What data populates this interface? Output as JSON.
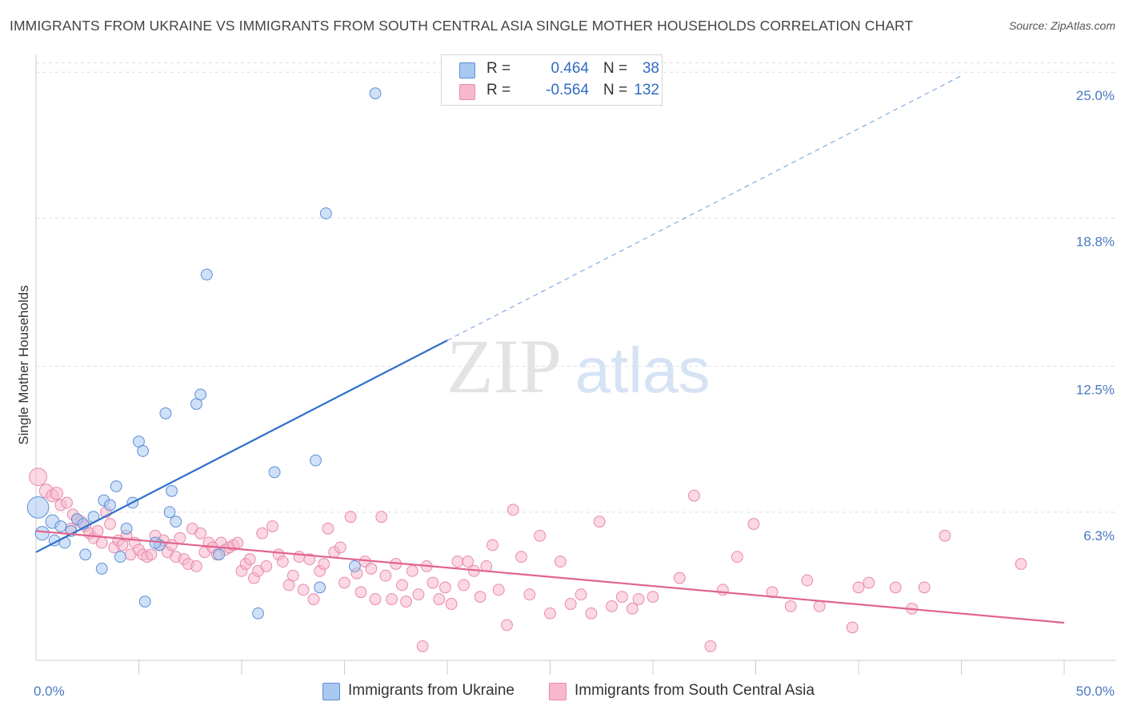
{
  "header": {
    "title": "IMMIGRANTS FROM UKRAINE VS IMMIGRANTS FROM SOUTH CENTRAL ASIA SINGLE MOTHER HOUSEHOLDS CORRELATION CHART",
    "source": "Source: ZipAtlas.com"
  },
  "watermark": {
    "zip": "ZIP",
    "atlas": "atlas"
  },
  "legend": {
    "rows": [
      {
        "r_label": "R =",
        "r_value": "0.464",
        "n_label": "N =",
        "n_value": "38"
      },
      {
        "r_label": "R =",
        "r_value": "-0.564",
        "n_label": "N =",
        "n_value": "132"
      }
    ]
  },
  "bottom_legend": {
    "items": [
      {
        "label": "Immigrants from Ukraine"
      },
      {
        "label": "Immigrants from South Central Asia"
      }
    ]
  },
  "colors": {
    "ukraine_fill": "#a9c8f0",
    "ukraine_stroke": "#5b8fd6",
    "ukraine_line": "#2f6fcb",
    "asia_fill": "#f7b8cc",
    "asia_stroke": "#e889a8",
    "asia_line": "#e0648f",
    "grid": "#dddddd",
    "tick_text": "#4a78c2"
  },
  "chart_data": {
    "type": "scatter",
    "title": "IMMIGRANTS FROM UKRAINE VS IMMIGRANTS FROM SOUTH CENTRAL ASIA SINGLE MOTHER HOUSEHOLDS CORRELATION CHART",
    "xlabel": "",
    "ylabel": "Single Mother Households",
    "xlim": [
      0,
      50
    ],
    "ylim": [
      0,
      26.3
    ],
    "x_tick_labels": [
      {
        "value": 0,
        "label": "0.0%"
      },
      {
        "value": 50,
        "label": "50.0%"
      }
    ],
    "x_minor_ticks": [
      5,
      10,
      15,
      20,
      25,
      30,
      35,
      40,
      45,
      50
    ],
    "y_ticks": [
      {
        "value": 6.3,
        "label": "6.3%"
      },
      {
        "value": 12.5,
        "label": "12.5%"
      },
      {
        "value": 18.8,
        "label": "18.8%"
      },
      {
        "value": 25.0,
        "label": "25.0%"
      }
    ],
    "grid": true,
    "series": [
      {
        "name": "Immigrants from Ukraine",
        "r": 0.464,
        "n": 38,
        "trend": {
          "x0": 0,
          "y0": 4.6,
          "x1": 20,
          "y1": 13.6,
          "dash_to_x": 45
        },
        "points": [
          [
            0.1,
            6.5,
            1.6
          ],
          [
            0.3,
            5.4,
            1.0
          ],
          [
            0.8,
            5.9,
            1.0
          ],
          [
            0.9,
            5.1,
            0.8
          ],
          [
            1.2,
            5.7,
            0.8
          ],
          [
            1.4,
            5.0,
            0.8
          ],
          [
            1.7,
            5.5,
            0.8
          ],
          [
            2.0,
            6.0,
            0.8
          ],
          [
            2.3,
            5.8,
            0.8
          ],
          [
            2.4,
            4.5,
            0.8
          ],
          [
            2.8,
            6.1,
            0.8
          ],
          [
            3.2,
            3.9,
            0.8
          ],
          [
            3.3,
            6.8,
            0.8
          ],
          [
            3.6,
            6.6,
            0.8
          ],
          [
            3.9,
            7.4,
            0.8
          ],
          [
            4.1,
            4.4,
            0.8
          ],
          [
            4.4,
            5.6,
            0.8
          ],
          [
            4.7,
            6.7,
            0.8
          ],
          [
            5.0,
            9.3,
            0.8
          ],
          [
            5.2,
            8.9,
            0.8
          ],
          [
            5.3,
            2.5,
            0.8
          ],
          [
            6.0,
            4.9,
            0.8
          ],
          [
            6.3,
            10.5,
            0.8
          ],
          [
            6.5,
            6.3,
            0.8
          ],
          [
            6.6,
            7.2,
            0.8
          ],
          [
            6.8,
            5.9,
            0.8
          ],
          [
            7.8,
            10.9,
            0.8
          ],
          [
            8.0,
            11.3,
            0.8
          ],
          [
            8.3,
            16.4,
            0.8
          ],
          [
            8.9,
            4.5,
            0.8
          ],
          [
            10.8,
            2.0,
            0.8
          ],
          [
            11.6,
            8.0,
            0.8
          ],
          [
            13.6,
            8.5,
            0.8
          ],
          [
            13.8,
            3.1,
            0.8
          ],
          [
            14.1,
            19.0,
            0.8
          ],
          [
            15.5,
            4.0,
            0.8
          ],
          [
            16.5,
            24.1,
            0.8
          ],
          [
            5.8,
            5.0,
            0.8
          ]
        ]
      },
      {
        "name": "Immigrants from South Central Asia",
        "r": -0.564,
        "n": 132,
        "trend": {
          "x0": 0,
          "y0": 5.5,
          "x1": 50,
          "y1": 1.6
        },
        "points": [
          [
            0.1,
            7.8,
            1.3
          ],
          [
            0.5,
            7.2,
            1.0
          ],
          [
            0.8,
            7.0,
            0.9
          ],
          [
            1.0,
            7.1,
            0.9
          ],
          [
            1.2,
            6.6,
            0.8
          ],
          [
            1.5,
            6.7,
            0.8
          ],
          [
            1.7,
            5.6,
            0.8
          ],
          [
            1.8,
            6.2,
            0.8
          ],
          [
            2.0,
            6.0,
            0.8
          ],
          [
            2.2,
            5.9,
            0.8
          ],
          [
            2.4,
            5.7,
            0.8
          ],
          [
            2.6,
            5.4,
            0.8
          ],
          [
            2.8,
            5.2,
            0.8
          ],
          [
            3.0,
            5.5,
            0.8
          ],
          [
            3.2,
            5.0,
            0.8
          ],
          [
            3.4,
            6.3,
            0.8
          ],
          [
            3.6,
            5.8,
            0.8
          ],
          [
            3.8,
            4.8,
            0.8
          ],
          [
            4.0,
            5.1,
            0.8
          ],
          [
            4.2,
            4.9,
            0.8
          ],
          [
            4.4,
            5.3,
            0.8
          ],
          [
            4.6,
            4.5,
            0.8
          ],
          [
            4.8,
            5.0,
            0.8
          ],
          [
            5.0,
            4.7,
            0.8
          ],
          [
            5.2,
            4.5,
            0.8
          ],
          [
            5.4,
            4.4,
            0.8
          ],
          [
            5.6,
            4.5,
            0.8
          ],
          [
            5.8,
            5.3,
            0.8
          ],
          [
            6.0,
            4.9,
            0.8
          ],
          [
            6.2,
            5.1,
            0.8
          ],
          [
            6.4,
            4.6,
            0.8
          ],
          [
            6.6,
            4.9,
            0.8
          ],
          [
            6.8,
            4.4,
            0.8
          ],
          [
            7.0,
            5.2,
            0.8
          ],
          [
            7.2,
            4.3,
            0.8
          ],
          [
            7.4,
            4.1,
            0.8
          ],
          [
            7.6,
            5.6,
            0.8
          ],
          [
            7.8,
            4.0,
            0.8
          ],
          [
            8.0,
            5.4,
            0.8
          ],
          [
            8.2,
            4.6,
            0.8
          ],
          [
            8.4,
            5.0,
            0.8
          ],
          [
            8.6,
            4.8,
            0.8
          ],
          [
            8.8,
            4.5,
            0.8
          ],
          [
            9.0,
            5.0,
            0.8
          ],
          [
            9.2,
            4.7,
            0.8
          ],
          [
            9.4,
            4.8,
            0.8
          ],
          [
            9.6,
            4.9,
            0.8
          ],
          [
            9.8,
            5.0,
            0.8
          ],
          [
            10.0,
            3.8,
            0.8
          ],
          [
            10.2,
            4.1,
            0.8
          ],
          [
            10.4,
            4.3,
            0.8
          ],
          [
            10.6,
            3.5,
            0.8
          ],
          [
            10.8,
            3.8,
            0.8
          ],
          [
            11.0,
            5.4,
            0.8
          ],
          [
            11.2,
            4.0,
            0.8
          ],
          [
            11.5,
            5.7,
            0.8
          ],
          [
            11.8,
            4.5,
            0.8
          ],
          [
            12.0,
            4.2,
            0.8
          ],
          [
            12.3,
            3.2,
            0.8
          ],
          [
            12.5,
            3.6,
            0.8
          ],
          [
            12.8,
            4.4,
            0.8
          ],
          [
            13.0,
            3.0,
            0.8
          ],
          [
            13.3,
            4.3,
            0.8
          ],
          [
            13.5,
            2.6,
            0.8
          ],
          [
            13.8,
            3.8,
            0.8
          ],
          [
            14.0,
            4.1,
            0.8
          ],
          [
            14.2,
            5.6,
            0.8
          ],
          [
            14.5,
            4.6,
            0.8
          ],
          [
            14.8,
            4.8,
            0.8
          ],
          [
            15.0,
            3.3,
            0.8
          ],
          [
            15.3,
            6.1,
            0.8
          ],
          [
            15.6,
            3.7,
            0.8
          ],
          [
            15.8,
            2.9,
            0.8
          ],
          [
            16.0,
            4.2,
            0.8
          ],
          [
            16.3,
            3.9,
            0.8
          ],
          [
            16.5,
            2.6,
            0.8
          ],
          [
            16.8,
            6.1,
            0.8
          ],
          [
            17.0,
            3.6,
            0.8
          ],
          [
            17.3,
            2.6,
            0.8
          ],
          [
            17.5,
            4.1,
            0.8
          ],
          [
            17.8,
            3.2,
            0.8
          ],
          [
            18.0,
            2.5,
            0.8
          ],
          [
            18.3,
            3.8,
            0.8
          ],
          [
            18.6,
            2.8,
            0.8
          ],
          [
            18.8,
            0.6,
            0.8
          ],
          [
            19.0,
            4.0,
            0.8
          ],
          [
            19.3,
            3.3,
            0.8
          ],
          [
            19.6,
            2.6,
            0.8
          ],
          [
            19.9,
            3.1,
            0.8
          ],
          [
            20.2,
            2.4,
            0.8
          ],
          [
            20.5,
            4.2,
            0.8
          ],
          [
            20.8,
            3.2,
            0.8
          ],
          [
            21.0,
            4.2,
            0.8
          ],
          [
            21.3,
            3.8,
            0.8
          ],
          [
            21.6,
            2.7,
            0.8
          ],
          [
            21.9,
            4.0,
            0.8
          ],
          [
            22.2,
            4.9,
            0.8
          ],
          [
            22.5,
            3.0,
            0.8
          ],
          [
            22.9,
            1.5,
            0.8
          ],
          [
            23.2,
            6.4,
            0.8
          ],
          [
            23.6,
            4.4,
            0.8
          ],
          [
            24.0,
            2.8,
            0.8
          ],
          [
            24.5,
            5.3,
            0.8
          ],
          [
            25.0,
            2.0,
            0.8
          ],
          [
            25.5,
            4.2,
            0.8
          ],
          [
            26.0,
            2.4,
            0.8
          ],
          [
            26.5,
            2.8,
            0.8
          ],
          [
            27.0,
            2.0,
            0.8
          ],
          [
            27.4,
            5.9,
            0.8
          ],
          [
            28.0,
            2.3,
            0.8
          ],
          [
            28.5,
            2.7,
            0.8
          ],
          [
            29.0,
            2.2,
            0.8
          ],
          [
            29.3,
            2.6,
            0.8
          ],
          [
            30.0,
            2.7,
            0.8
          ],
          [
            31.3,
            3.5,
            0.8
          ],
          [
            32.0,
            7.0,
            0.8
          ],
          [
            32.8,
            0.6,
            0.8
          ],
          [
            33.4,
            3.0,
            0.8
          ],
          [
            34.1,
            4.4,
            0.8
          ],
          [
            34.9,
            5.8,
            0.8
          ],
          [
            35.8,
            2.9,
            0.8
          ],
          [
            36.7,
            2.3,
            0.8
          ],
          [
            37.5,
            3.4,
            0.8
          ],
          [
            38.1,
            2.3,
            0.8
          ],
          [
            39.7,
            1.4,
            0.8
          ],
          [
            40.0,
            3.1,
            0.8
          ],
          [
            40.5,
            3.3,
            0.8
          ],
          [
            41.8,
            3.1,
            0.8
          ],
          [
            42.6,
            2.2,
            0.8
          ],
          [
            43.2,
            3.1,
            0.8
          ],
          [
            44.2,
            5.3,
            0.8
          ],
          [
            47.9,
            4.1,
            0.8
          ]
        ]
      }
    ]
  }
}
